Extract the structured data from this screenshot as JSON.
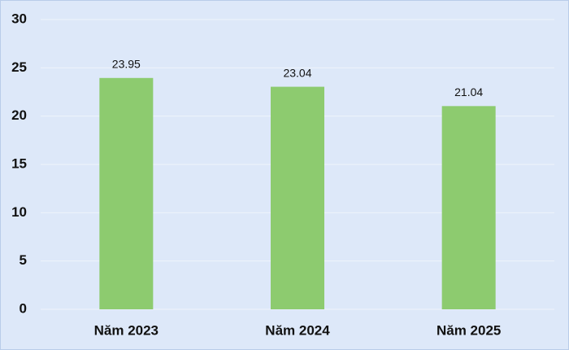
{
  "chart_data": {
    "type": "bar",
    "categories": [
      "Năm 2023",
      "Năm 2024",
      "Năm 2025"
    ],
    "values": [
      23.95,
      23.04,
      21.04
    ],
    "color": "#8dcb6f",
    "ylim": [
      0,
      30
    ],
    "yticks": [
      0,
      5,
      10,
      15,
      20,
      25,
      30
    ],
    "grid": true
  }
}
